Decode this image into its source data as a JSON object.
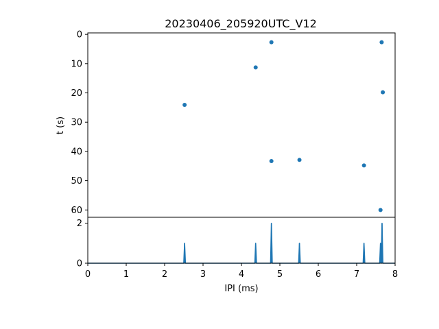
{
  "chart_data": [
    {
      "type": "scatter",
      "title": "20230406_205920UTC_V12",
      "xlabel": "",
      "ylabel": "t (s)",
      "xlim": [
        0,
        8
      ],
      "ylim": [
        62.5,
        -0.5
      ],
      "y_inverted": true,
      "x_ticks": [],
      "y_ticks": [
        0,
        10,
        20,
        30,
        40,
        50,
        60
      ],
      "color": "#1f77b4",
      "points": [
        {
          "x": 4.78,
          "y": 2.7
        },
        {
          "x": 7.65,
          "y": 2.7
        },
        {
          "x": 4.37,
          "y": 11.3
        },
        {
          "x": 7.68,
          "y": 19.8
        },
        {
          "x": 2.52,
          "y": 24.1
        },
        {
          "x": 4.78,
          "y": 43.3
        },
        {
          "x": 5.51,
          "y": 42.9
        },
        {
          "x": 7.19,
          "y": 44.8
        },
        {
          "x": 7.62,
          "y": 60.0
        }
      ]
    },
    {
      "type": "line",
      "title": "",
      "xlabel": "IPI (ms)",
      "ylabel": "",
      "xlim": [
        0,
        8
      ],
      "ylim": [
        0,
        2.3
      ],
      "x_ticks": [
        0,
        1,
        2,
        3,
        4,
        5,
        6,
        7,
        8
      ],
      "y_ticks": [
        0,
        2
      ],
      "color": "#1f77b4",
      "peaks": [
        {
          "x": 2.52,
          "height": 1
        },
        {
          "x": 4.37,
          "height": 1
        },
        {
          "x": 4.78,
          "height": 2
        },
        {
          "x": 5.51,
          "height": 1
        },
        {
          "x": 7.19,
          "height": 1
        },
        {
          "x": 7.62,
          "height": 1
        },
        {
          "x": 7.66,
          "height": 2
        }
      ]
    }
  ]
}
